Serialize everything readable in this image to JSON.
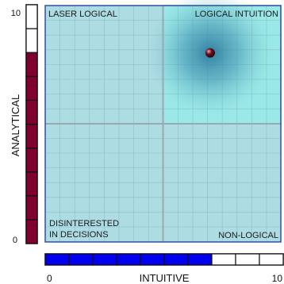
{
  "chart_data": {
    "type": "scatter",
    "x_axis": {
      "label": "INTUITIVE",
      "min_label": "0",
      "max_label": "10",
      "range": [
        0,
        10
      ]
    },
    "y_axis": {
      "label": "ANALYTICAL",
      "min_label": "0",
      "max_label": "10",
      "range": [
        0,
        10
      ]
    },
    "quadrants": {
      "top_left": "LASER LOGICAL",
      "top_right": "LOGICAL INTUITION",
      "bottom_left": "DISINTERESTED\nIN DECISIONS",
      "bottom_right": "NON-LOGICAL"
    },
    "highlighted_quadrant": "top_right",
    "point": {
      "x": 7.0,
      "y": 8.0
    },
    "analytical_scale": {
      "segments": 10,
      "filled": 8,
      "fill_color": "#800030"
    },
    "intuitive_scale": {
      "segments": 10,
      "filled": 7,
      "fill_color": "#0000ee"
    },
    "grid": true,
    "colors": {
      "plot_background": "#aedce3",
      "highlight_quadrant": "#9be9e7",
      "highlight_border": "#6ccf6c",
      "border": "#3050a0",
      "divider": "#9aa8b0",
      "glow": "#3d8fb0",
      "point": "#701020"
    }
  }
}
